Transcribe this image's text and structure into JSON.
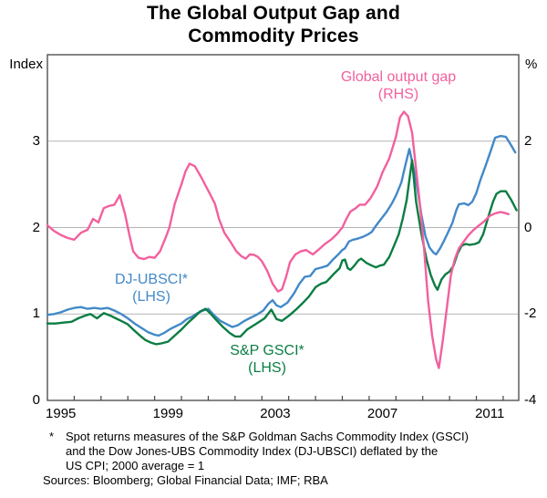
{
  "title": {
    "line1": "The Global Output Gap and",
    "line2": "Commodity Prices"
  },
  "y_axis_left": {
    "unit": "Index",
    "tick_labels": [
      "3",
      "2",
      "1",
      "0"
    ],
    "tick_values": [
      3,
      2,
      1,
      0
    ]
  },
  "y_axis_right": {
    "unit": "%",
    "tick_labels": [
      "2",
      "0",
      "-2",
      "-4"
    ],
    "tick_values": [
      2,
      0,
      -2,
      -4
    ]
  },
  "x_axis": {
    "year_labels": [
      "1995",
      "1999",
      "2003",
      "2007",
      "2011"
    ],
    "label_years": [
      1995.5,
      1999.5,
      2003.5,
      2007.5,
      2011.5
    ],
    "minor_tick_years": [
      1996,
      1997,
      1998,
      1999,
      2000,
      2001,
      2002,
      2003,
      2004,
      2005,
      2006,
      2007,
      2008,
      2009,
      2010,
      2011,
      2012
    ]
  },
  "legend": {
    "output_gap": {
      "line1": "Global output gap",
      "line2": "(RHS)",
      "color": "#f2609e"
    },
    "dj_ubsci": {
      "line1": "DJ-UBSCI*",
      "line2": "(LHS)",
      "color": "#4289c8"
    },
    "sp_gsci": {
      "line1": "S&P GSCI*",
      "line2": "(LHS)",
      "color": "#0b7d43"
    }
  },
  "footnote": {
    "marker": "*",
    "lines": [
      "Spot returns measures of the S&P Goldman Sachs Commodity Index (GSCI)",
      "and the Dow Jones-UBS Commodity Index (DJ-UBSCI) deflated by the",
      "US CPI; 2000 average = 1"
    ]
  },
  "sources": "Sources: Bloomberg; Global Financial Data; IMF; RBA",
  "colors": {
    "grid": "#b5b5b5",
    "frame": "#444444",
    "pink": "#f2609e",
    "blue": "#4289c8",
    "green": "#0b7d43"
  },
  "chart_data": {
    "type": "line",
    "title": "The Global Output Gap and Commodity Prices",
    "x_range": [
      1995,
      2012.58
    ],
    "grid": true,
    "left_axis": {
      "label": "Index",
      "range": [
        0,
        4
      ],
      "ticks": [
        0,
        1,
        2,
        3
      ],
      "grid_values": [
        1,
        2,
        3
      ]
    },
    "right_axis": {
      "label": "%",
      "range": [
        -4,
        4
      ],
      "ticks": [
        -4,
        -2,
        0,
        2
      ]
    },
    "series": [
      {
        "name": "DJ-UBSCI (LHS)",
        "axis": "left",
        "color": "#4289c8",
        "points": [
          [
            1995.0,
            0.99
          ],
          [
            1995.25,
            1.0
          ],
          [
            1995.5,
            1.02
          ],
          [
            1995.75,
            1.05
          ],
          [
            1996.0,
            1.07
          ],
          [
            1996.25,
            1.08
          ],
          [
            1996.5,
            1.06
          ],
          [
            1996.75,
            1.07
          ],
          [
            1997.0,
            1.06
          ],
          [
            1997.25,
            1.07
          ],
          [
            1997.5,
            1.04
          ],
          [
            1997.75,
            1.0
          ],
          [
            1998.0,
            0.95
          ],
          [
            1998.25,
            0.89
          ],
          [
            1998.5,
            0.84
          ],
          [
            1998.75,
            0.79
          ],
          [
            1999.0,
            0.76
          ],
          [
            1999.15,
            0.75
          ],
          [
            1999.35,
            0.78
          ],
          [
            1999.6,
            0.83
          ],
          [
            1999.8,
            0.86
          ],
          [
            2000.0,
            0.89
          ],
          [
            2000.2,
            0.94
          ],
          [
            2000.4,
            0.97
          ],
          [
            2000.6,
            1.01
          ],
          [
            2000.8,
            1.04
          ],
          [
            2001.0,
            1.06
          ],
          [
            2001.2,
            0.99
          ],
          [
            2001.45,
            0.92
          ],
          [
            2001.7,
            0.88
          ],
          [
            2001.9,
            0.85
          ],
          [
            2002.1,
            0.87
          ],
          [
            2002.35,
            0.92
          ],
          [
            2002.6,
            0.96
          ],
          [
            2002.8,
            0.99
          ],
          [
            2003.05,
            1.04
          ],
          [
            2003.25,
            1.12
          ],
          [
            2003.4,
            1.16
          ],
          [
            2003.55,
            1.1
          ],
          [
            2003.7,
            1.08
          ],
          [
            2003.95,
            1.13
          ],
          [
            2004.2,
            1.24
          ],
          [
            2004.4,
            1.35
          ],
          [
            2004.6,
            1.43
          ],
          [
            2004.8,
            1.44
          ],
          [
            2005.0,
            1.52
          ],
          [
            2005.25,
            1.54
          ],
          [
            2005.45,
            1.56
          ],
          [
            2005.65,
            1.63
          ],
          [
            2005.85,
            1.69
          ],
          [
            2006.0,
            1.74
          ],
          [
            2006.1,
            1.76
          ],
          [
            2006.25,
            1.84
          ],
          [
            2006.4,
            1.86
          ],
          [
            2006.55,
            1.87
          ],
          [
            2006.75,
            1.89
          ],
          [
            2006.95,
            1.92
          ],
          [
            2007.1,
            1.95
          ],
          [
            2007.25,
            2.02
          ],
          [
            2007.45,
            2.1
          ],
          [
            2007.65,
            2.18
          ],
          [
            2007.85,
            2.28
          ],
          [
            2008.0,
            2.37
          ],
          [
            2008.2,
            2.52
          ],
          [
            2008.35,
            2.72
          ],
          [
            2008.5,
            2.91
          ],
          [
            2008.65,
            2.7
          ],
          [
            2008.8,
            2.45
          ],
          [
            2008.95,
            2.15
          ],
          [
            2009.1,
            1.9
          ],
          [
            2009.25,
            1.77
          ],
          [
            2009.4,
            1.71
          ],
          [
            2009.5,
            1.69
          ],
          [
            2009.65,
            1.76
          ],
          [
            2009.8,
            1.85
          ],
          [
            2009.95,
            1.95
          ],
          [
            2010.1,
            2.05
          ],
          [
            2010.25,
            2.2
          ],
          [
            2010.35,
            2.27
          ],
          [
            2010.55,
            2.28
          ],
          [
            2010.7,
            2.26
          ],
          [
            2010.85,
            2.3
          ],
          [
            2011.0,
            2.4
          ],
          [
            2011.15,
            2.55
          ],
          [
            2011.35,
            2.72
          ],
          [
            2011.55,
            2.9
          ],
          [
            2011.7,
            3.04
          ],
          [
            2011.9,
            3.06
          ],
          [
            2012.1,
            3.05
          ],
          [
            2012.3,
            2.95
          ],
          [
            2012.45,
            2.87
          ]
        ]
      },
      {
        "name": "S&P GSCI (LHS)",
        "axis": "left",
        "color": "#0b7d43",
        "points": [
          [
            1995.0,
            0.89
          ],
          [
            1995.3,
            0.89
          ],
          [
            1995.6,
            0.9
          ],
          [
            1995.9,
            0.91
          ],
          [
            1996.15,
            0.95
          ],
          [
            1996.4,
            0.98
          ],
          [
            1996.6,
            1.0
          ],
          [
            1996.85,
            0.95
          ],
          [
            1997.1,
            1.01
          ],
          [
            1997.35,
            0.98
          ],
          [
            1997.55,
            0.95
          ],
          [
            1997.75,
            0.92
          ],
          [
            1998.0,
            0.88
          ],
          [
            1998.2,
            0.82
          ],
          [
            1998.45,
            0.75
          ],
          [
            1998.65,
            0.7
          ],
          [
            1998.85,
            0.67
          ],
          [
            1999.05,
            0.65
          ],
          [
            1999.25,
            0.66
          ],
          [
            1999.5,
            0.68
          ],
          [
            1999.75,
            0.75
          ],
          [
            2000.0,
            0.82
          ],
          [
            2000.25,
            0.9
          ],
          [
            2000.5,
            0.97
          ],
          [
            2000.7,
            1.03
          ],
          [
            2000.9,
            1.06
          ],
          [
            2001.1,
            1.0
          ],
          [
            2001.3,
            0.93
          ],
          [
            2001.55,
            0.85
          ],
          [
            2001.8,
            0.78
          ],
          [
            2002.0,
            0.74
          ],
          [
            2002.2,
            0.74
          ],
          [
            2002.45,
            0.82
          ],
          [
            2002.8,
            0.89
          ],
          [
            2003.1,
            0.95
          ],
          [
            2003.35,
            1.05
          ],
          [
            2003.55,
            0.94
          ],
          [
            2003.75,
            0.92
          ],
          [
            2004.05,
            0.99
          ],
          [
            2004.3,
            1.06
          ],
          [
            2004.5,
            1.12
          ],
          [
            2004.75,
            1.2
          ],
          [
            2005.0,
            1.31
          ],
          [
            2005.2,
            1.35
          ],
          [
            2005.4,
            1.37
          ],
          [
            2005.55,
            1.42
          ],
          [
            2005.7,
            1.47
          ],
          [
            2005.9,
            1.53
          ],
          [
            2006.0,
            1.62
          ],
          [
            2006.1,
            1.63
          ],
          [
            2006.2,
            1.53
          ],
          [
            2006.3,
            1.51
          ],
          [
            2006.45,
            1.56
          ],
          [
            2006.6,
            1.62
          ],
          [
            2006.7,
            1.64
          ],
          [
            2006.9,
            1.59
          ],
          [
            2007.1,
            1.56
          ],
          [
            2007.25,
            1.54
          ],
          [
            2007.4,
            1.56
          ],
          [
            2007.55,
            1.57
          ],
          [
            2007.75,
            1.66
          ],
          [
            2007.9,
            1.77
          ],
          [
            2008.1,
            1.92
          ],
          [
            2008.25,
            2.1
          ],
          [
            2008.4,
            2.32
          ],
          [
            2008.5,
            2.55
          ],
          [
            2008.6,
            2.78
          ],
          [
            2008.75,
            2.3
          ],
          [
            2008.95,
            1.93
          ],
          [
            2009.15,
            1.62
          ],
          [
            2009.3,
            1.45
          ],
          [
            2009.45,
            1.33
          ],
          [
            2009.55,
            1.28
          ],
          [
            2009.7,
            1.4
          ],
          [
            2009.85,
            1.46
          ],
          [
            2010.0,
            1.49
          ],
          [
            2010.15,
            1.56
          ],
          [
            2010.3,
            1.7
          ],
          [
            2010.45,
            1.79
          ],
          [
            2010.6,
            1.81
          ],
          [
            2010.75,
            1.8
          ],
          [
            2010.95,
            1.81
          ],
          [
            2011.1,
            1.83
          ],
          [
            2011.25,
            1.92
          ],
          [
            2011.45,
            2.13
          ],
          [
            2011.62,
            2.3
          ],
          [
            2011.75,
            2.39
          ],
          [
            2011.9,
            2.42
          ],
          [
            2012.1,
            2.42
          ],
          [
            2012.3,
            2.32
          ],
          [
            2012.5,
            2.2
          ]
        ]
      },
      {
        "name": "Global output gap (RHS)",
        "axis": "right",
        "color": "#f2609e",
        "points": [
          [
            1995.0,
            0.05
          ],
          [
            1995.25,
            -0.08
          ],
          [
            1995.5,
            -0.17
          ],
          [
            1995.75,
            -0.24
          ],
          [
            1996.0,
            -0.28
          ],
          [
            1996.25,
            -0.12
          ],
          [
            1996.5,
            -0.05
          ],
          [
            1996.7,
            0.2
          ],
          [
            1996.9,
            0.12
          ],
          [
            1997.1,
            0.45
          ],
          [
            1997.3,
            0.5
          ],
          [
            1997.5,
            0.53
          ],
          [
            1997.7,
            0.75
          ],
          [
            1997.9,
            0.3
          ],
          [
            1998.05,
            -0.15
          ],
          [
            1998.2,
            -0.55
          ],
          [
            1998.4,
            -0.7
          ],
          [
            1998.6,
            -0.73
          ],
          [
            1998.8,
            -0.68
          ],
          [
            1999.0,
            -0.7
          ],
          [
            1999.2,
            -0.55
          ],
          [
            1999.4,
            -0.25
          ],
          [
            1999.55,
            0.0
          ],
          [
            1999.75,
            0.55
          ],
          [
            2000.0,
            1.0
          ],
          [
            2000.15,
            1.3
          ],
          [
            2000.3,
            1.48
          ],
          [
            2000.5,
            1.42
          ],
          [
            2000.75,
            1.15
          ],
          [
            2001.0,
            0.85
          ],
          [
            2001.25,
            0.55
          ],
          [
            2001.4,
            0.2
          ],
          [
            2001.6,
            -0.12
          ],
          [
            2001.85,
            -0.35
          ],
          [
            2002.05,
            -0.55
          ],
          [
            2002.25,
            -0.67
          ],
          [
            2002.4,
            -0.72
          ],
          [
            2002.55,
            -0.62
          ],
          [
            2002.7,
            -0.63
          ],
          [
            2002.85,
            -0.68
          ],
          [
            2003.0,
            -0.78
          ],
          [
            2003.2,
            -1.0
          ],
          [
            2003.4,
            -1.3
          ],
          [
            2003.6,
            -1.48
          ],
          [
            2003.75,
            -1.43
          ],
          [
            2003.9,
            -1.15
          ],
          [
            2004.05,
            -0.8
          ],
          [
            2004.25,
            -0.62
          ],
          [
            2004.45,
            -0.55
          ],
          [
            2004.65,
            -0.52
          ],
          [
            2004.9,
            -0.62
          ],
          [
            2005.1,
            -0.52
          ],
          [
            2005.35,
            -0.38
          ],
          [
            2005.6,
            -0.27
          ],
          [
            2005.8,
            -0.15
          ],
          [
            2006.0,
            0.0
          ],
          [
            2006.15,
            0.2
          ],
          [
            2006.3,
            0.37
          ],
          [
            2006.5,
            0.45
          ],
          [
            2006.65,
            0.53
          ],
          [
            2006.85,
            0.53
          ],
          [
            2007.05,
            0.68
          ],
          [
            2007.3,
            0.95
          ],
          [
            2007.5,
            1.28
          ],
          [
            2007.75,
            1.6
          ],
          [
            2008.0,
            2.1
          ],
          [
            2008.15,
            2.55
          ],
          [
            2008.3,
            2.68
          ],
          [
            2008.45,
            2.58
          ],
          [
            2008.6,
            2.2
          ],
          [
            2008.75,
            1.35
          ],
          [
            2008.9,
            0.5
          ],
          [
            2009.05,
            -0.5
          ],
          [
            2009.2,
            -1.7
          ],
          [
            2009.35,
            -2.5
          ],
          [
            2009.5,
            -3.05
          ],
          [
            2009.6,
            -3.25
          ],
          [
            2009.75,
            -2.6
          ],
          [
            2009.9,
            -1.85
          ],
          [
            2010.05,
            -1.1
          ],
          [
            2010.2,
            -0.72
          ],
          [
            2010.35,
            -0.48
          ],
          [
            2010.5,
            -0.35
          ],
          [
            2010.7,
            -0.18
          ],
          [
            2010.9,
            -0.05
          ],
          [
            2011.1,
            0.05
          ],
          [
            2011.3,
            0.15
          ],
          [
            2011.5,
            0.27
          ],
          [
            2011.7,
            0.33
          ],
          [
            2011.9,
            0.36
          ],
          [
            2012.05,
            0.34
          ],
          [
            2012.2,
            0.31
          ]
        ]
      }
    ]
  }
}
